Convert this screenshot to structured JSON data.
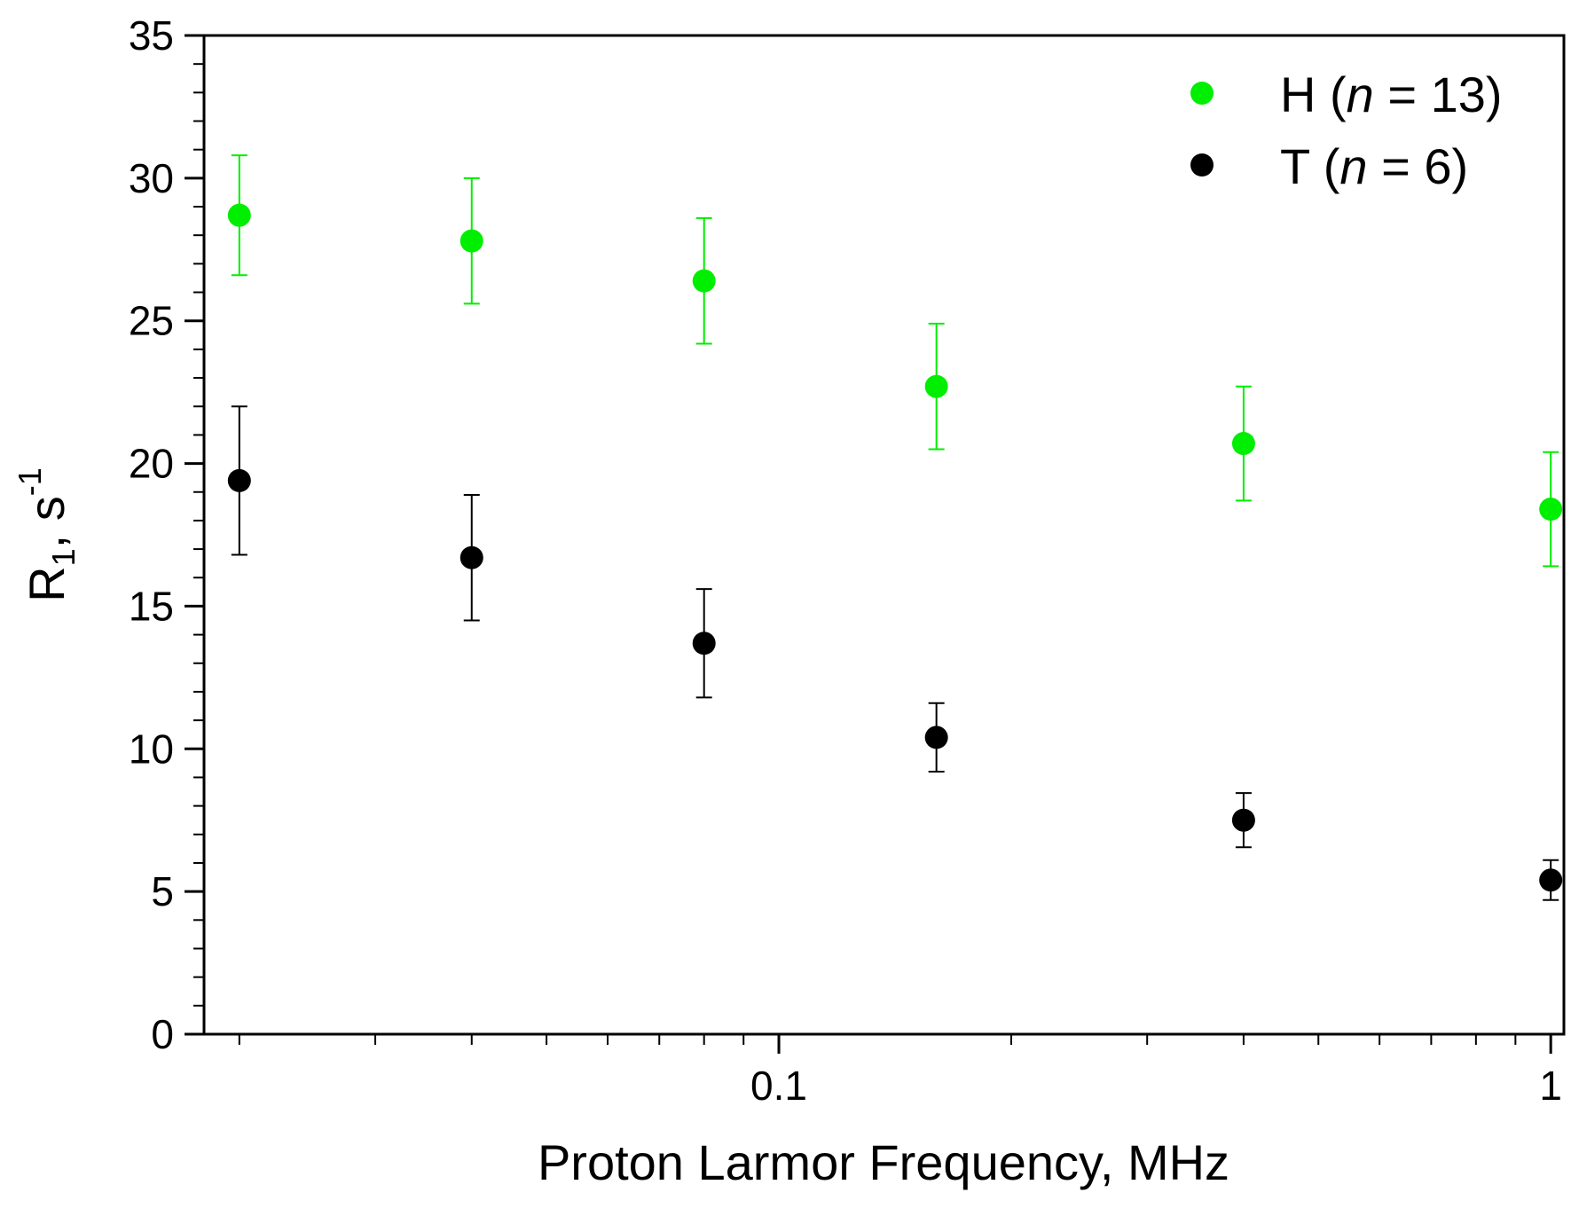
{
  "chart_data": {
    "type": "scatter",
    "title": "",
    "xlabel": "Proton Larmor Frequency, MHz",
    "ylabel_main": "R",
    "ylabel_sub": "1",
    "ylabel_mid": ", s",
    "ylabel_sup": "-1",
    "xscale": "log",
    "xlim": [
      0.018,
      1.04
    ],
    "ylim": [
      0,
      35
    ],
    "yticks": [
      0,
      5,
      10,
      15,
      20,
      25,
      30,
      35
    ],
    "xticks_major": [
      0.1,
      1
    ],
    "xtick_labels": [
      "0.1",
      "1"
    ],
    "legend_position": "top-right",
    "series": [
      {
        "name": "H (n = 13)",
        "label_pre": "H (",
        "label_italic": "n",
        "label_post": " = 13)",
        "color": "#00ee00",
        "x": [
          0.02,
          0.04,
          0.08,
          0.16,
          0.4,
          1.0
        ],
        "y": [
          28.7,
          27.8,
          26.4,
          22.7,
          20.7,
          18.4
        ],
        "err": [
          2.1,
          2.2,
          2.2,
          2.2,
          2.0,
          2.0
        ]
      },
      {
        "name": "T (n = 6)",
        "label_pre": "T (",
        "label_italic": "n",
        "label_post": " = 6)",
        "color": "#000000",
        "x": [
          0.02,
          0.04,
          0.08,
          0.16,
          0.4,
          1.0
        ],
        "y": [
          19.4,
          16.7,
          13.7,
          10.4,
          7.5,
          5.4
        ],
        "err": [
          2.6,
          2.2,
          1.9,
          1.2,
          0.95,
          0.7
        ]
      }
    ]
  }
}
